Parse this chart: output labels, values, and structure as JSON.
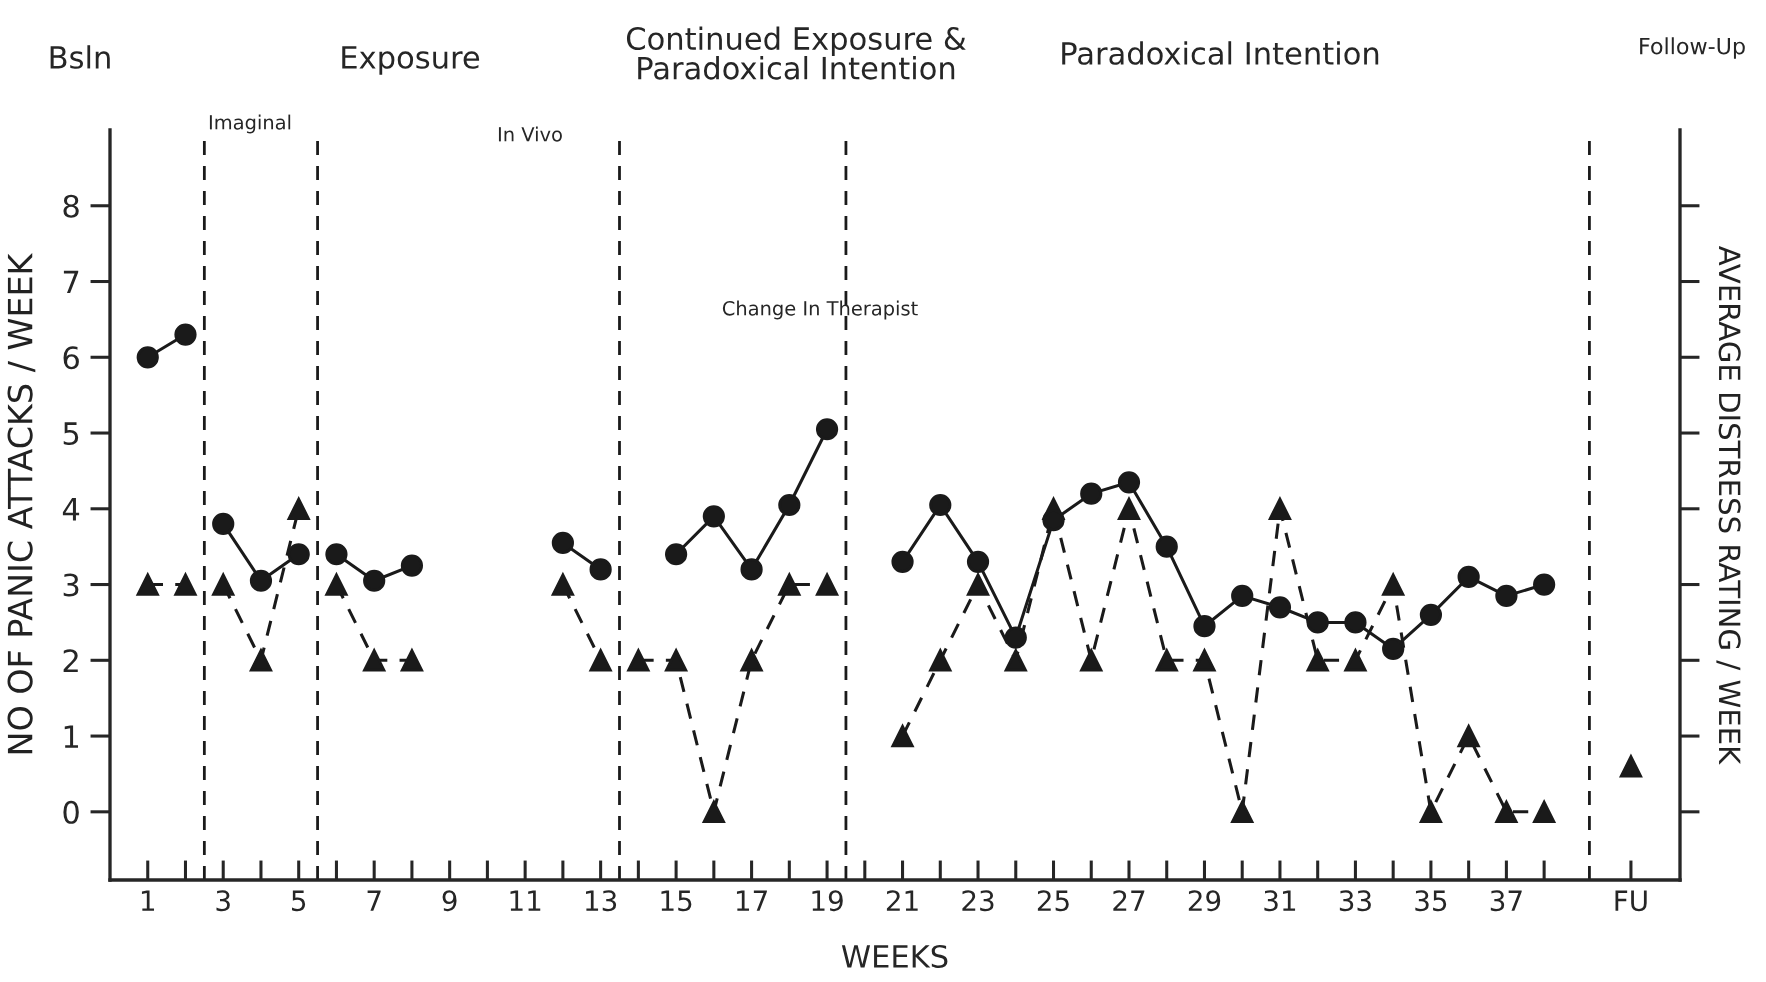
{
  "chart_data": {
    "type": "line",
    "xlabel": "WEEKS",
    "ylabel": "NO OF PANIC ATTACKS / WEEK",
    "y2label": "AVERAGE DISTRESS RATING / WEEK",
    "annotations": [
      "Bsln",
      "Imaginal",
      "Exposure",
      "In Vivo",
      "Continued Exposure &\nParadoxical Intention",
      "Change In Therapist",
      "Paradoxical Intention",
      "Follow-Up"
    ],
    "series": [
      {
        "color": "#1a1a1a",
        "marker": "circle",
        "line_style": "solid",
        "x": [
          1,
          2,
          2.5,
          3,
          4,
          5,
          5.5,
          6,
          7,
          8,
          9,
          12,
          13,
          14,
          15,
          16,
          17,
          18,
          19,
          20,
          21,
          22,
          23,
          24,
          25,
          26,
          27,
          28,
          29,
          30,
          31,
          32,
          33,
          34,
          35,
          36,
          37,
          38
        ],
        "values": [
          6.0,
          6.3,
          null,
          3.8,
          3.05,
          3.4,
          null,
          3.4,
          3.05,
          3.25,
          null,
          3.55,
          3.2,
          null,
          3.4,
          3.9,
          3.2,
          4.05,
          5.05,
          null,
          3.3,
          4.05,
          3.3,
          2.3,
          3.85,
          4.2,
          4.35,
          3.5,
          2.45,
          2.85,
          2.7,
          2.5,
          2.5,
          2.15,
          2.6,
          3.1,
          2.85,
          3.0
        ]
      },
      {
        "color": "#1a1a1a",
        "marker": "triangle",
        "line_style": "dashed",
        "x": [
          1,
          2,
          2.5,
          3,
          4,
          5,
          5.5,
          6,
          7,
          8,
          9,
          12,
          13,
          13.5,
          14,
          15,
          16,
          17,
          18,
          19,
          20,
          21,
          22,
          23,
          24,
          25,
          26,
          27,
          28,
          29,
          30,
          31,
          32,
          33,
          34,
          35,
          36,
          37,
          38,
          39,
          40.3
        ],
        "values": [
          3,
          3,
          null,
          3,
          2,
          4,
          null,
          3,
          2,
          2,
          null,
          3,
          2,
          null,
          2,
          2,
          0,
          2,
          3,
          3,
          null,
          1,
          2,
          3,
          2,
          4,
          2,
          4,
          2,
          2,
          0,
          4,
          2,
          2,
          3,
          0,
          1,
          0,
          0,
          null,
          0.6
        ]
      }
    ],
    "xlim": [
      0,
      41.6
    ],
    "xticks": [
      1,
      {
        "value": 2,
        "label": null
      },
      3,
      {
        "value": 4,
        "label": null
      },
      5,
      {
        "value": 6,
        "label": null
      },
      7,
      {
        "value": 8,
        "label": null
      },
      9,
      {
        "value": 10,
        "label": null
      },
      11,
      {
        "value": 12,
        "label": null
      },
      13,
      {
        "value": 14,
        "label": null
      },
      15,
      {
        "value": 16,
        "label": null
      },
      17,
      {
        "value": 18,
        "label": null
      },
      19,
      {
        "value": 20,
        "label": null
      },
      21,
      {
        "value": 22,
        "label": null
      },
      23,
      {
        "value": 24,
        "label": null
      },
      25,
      {
        "value": 26,
        "label": null
      },
      27,
      {
        "value": 28,
        "label": null
      },
      29,
      {
        "value": 30,
        "label": null
      },
      31,
      {
        "value": 32,
        "label": null
      },
      33,
      {
        "value": 34,
        "label": null
      },
      35,
      {
        "value": 36,
        "label": null
      },
      37,
      {
        "value": 38,
        "label": null
      },
      {
        "value": 40.3,
        "label": "FU"
      }
    ],
    "ylim": [
      -0.9,
      9.0
    ],
    "yticks": [
      0,
      1,
      2,
      3,
      4,
      5,
      6,
      7,
      8
    ],
    "ref_lines": [
      {
        "axis": "x",
        "value": 2.5,
        "line_style": "dashed",
        "color": "#1a1a1a"
      },
      {
        "axis": "x",
        "value": 5.5,
        "line_style": "dashed",
        "color": "#1a1a1a"
      },
      {
        "axis": "x",
        "value": 13.5,
        "line_style": "dashed",
        "color": "#1a1a1a"
      },
      {
        "axis": "x",
        "value": 19.5,
        "line_style": "dashed",
        "color": "#1a1a1a"
      },
      {
        "axis": "x",
        "value": 39.2,
        "line_style": "dashed",
        "color": "#1a1a1a"
      }
    ],
    "grid": false,
    "legend": false
  }
}
